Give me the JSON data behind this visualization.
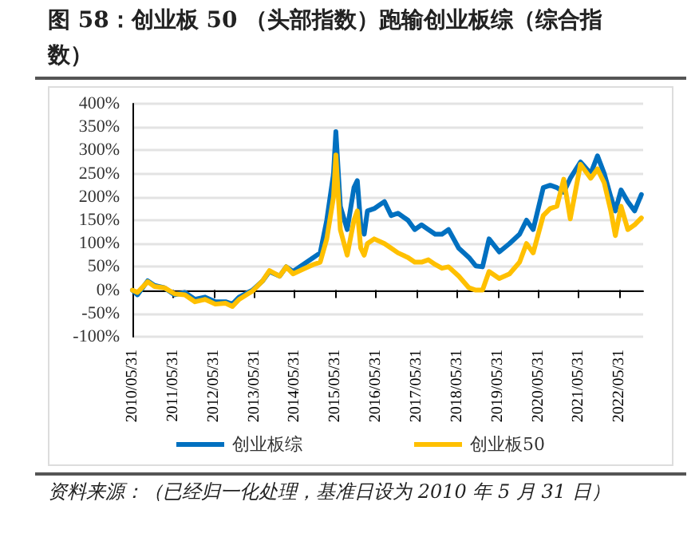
{
  "chart_data": {
    "type": "line",
    "title": "图 58：创业板 50 （头部指数）跑输创业板综（综合指数）",
    "annotations": [
      "资料来源：（已经归一化处理，基准日设为 2010 年 5 月 31 日）"
    ],
    "x": [
      "2010-05-31",
      "2010-07-15",
      "2010-10-15",
      "2010-12-15",
      "2011-03-15",
      "2011-06-15",
      "2011-09-15",
      "2011-12-15",
      "2012-03-15",
      "2012-06-15",
      "2012-09-15",
      "2012-11-15",
      "2013-01-15",
      "2013-05-15",
      "2013-08-15",
      "2013-10-15",
      "2014-01-15",
      "2014-03-15",
      "2014-05-15",
      "2014-08-15",
      "2014-11-15",
      "2015-01-15",
      "2015-03-15",
      "2015-05-15",
      "2015-06-05",
      "2015-07-15",
      "2015-09-15",
      "2015-11-15",
      "2015-12-15",
      "2016-01-15",
      "2016-02-15",
      "2016-03-15",
      "2016-05-15",
      "2016-08-15",
      "2016-10-15",
      "2016-12-15",
      "2017-03-15",
      "2017-05-15",
      "2017-07-15",
      "2017-09-15",
      "2017-11-15",
      "2018-01-15",
      "2018-03-15",
      "2018-06-15",
      "2018-09-15",
      "2018-11-15",
      "2019-01-15",
      "2019-03-15",
      "2019-06-15",
      "2019-09-15",
      "2019-12-15",
      "2020-02-15",
      "2020-04-15",
      "2020-07-15",
      "2020-09-15",
      "2020-11-15",
      "2021-01-15",
      "2021-03-15",
      "2021-06-15",
      "2021-09-15",
      "2021-11-15",
      "2022-01-15",
      "2022-03-15",
      "2022-04-25",
      "2022-06-15",
      "2022-08-15",
      "2022-10-15",
      "2022-12-15"
    ],
    "series": [
      {
        "name": "创业板综",
        "color": "#0070c0",
        "values": [
          0,
          -10,
          20,
          10,
          5,
          -10,
          -5,
          -20,
          -15,
          -25,
          -25,
          -30,
          -15,
          0,
          20,
          40,
          30,
          50,
          40,
          55,
          70,
          80,
          150,
          250,
          340,
          180,
          130,
          220,
          235,
          140,
          120,
          170,
          175,
          190,
          160,
          165,
          150,
          130,
          140,
          130,
          120,
          120,
          130,
          90,
          70,
          52,
          50,
          110,
          82,
          100,
          120,
          150,
          130,
          220,
          225,
          220,
          210,
          240,
          275,
          250,
          288,
          250,
          200,
          170,
          215,
          190,
          170,
          205
        ]
      },
      {
        "name": "创业板50",
        "color": "#ffc000",
        "values": [
          0,
          -5,
          18,
          8,
          5,
          -8,
          -10,
          -25,
          -20,
          -30,
          -28,
          -35,
          -20,
          -2,
          20,
          42,
          30,
          50,
          35,
          45,
          55,
          60,
          110,
          200,
          290,
          130,
          75,
          150,
          170,
          90,
          75,
          100,
          110,
          100,
          90,
          80,
          70,
          60,
          60,
          65,
          55,
          47,
          50,
          30,
          5,
          0,
          0,
          40,
          25,
          35,
          60,
          100,
          80,
          160,
          175,
          180,
          238,
          153,
          270,
          240,
          260,
          230,
          170,
          117,
          180,
          130,
          140,
          155
        ]
      }
    ],
    "xlim": [
      "2010-05-31",
      "2022-12-31"
    ],
    "xticks": [
      {
        "value": "2010-05-31",
        "label": "2010/05/31"
      },
      {
        "value": "2011-05-31",
        "label": "2011/05/31"
      },
      {
        "value": "2012-05-31",
        "label": "2012/05/31"
      },
      {
        "value": "2013-05-31",
        "label": "2013/05/31"
      },
      {
        "value": "2014-05-31",
        "label": "2014/05/31"
      },
      {
        "value": "2015-05-31",
        "label": "2015/05/31"
      },
      {
        "value": "2016-05-31",
        "label": "2016/05/31"
      },
      {
        "value": "2017-05-31",
        "label": "2017/05/31"
      },
      {
        "value": "2018-05-31",
        "label": "2018/05/31"
      },
      {
        "value": "2019-05-31",
        "label": "2019/05/31"
      },
      {
        "value": "2020-05-31",
        "label": "2020/05/31"
      },
      {
        "value": "2021-05-31",
        "label": "2021/05/31"
      },
      {
        "value": "2022-05-31",
        "label": "2022/05/31"
      }
    ],
    "ylim": [
      -100,
      400
    ],
    "yticks": [
      {
        "value": -100,
        "label": "-100%"
      },
      {
        "value": -50,
        "label": "-50%"
      },
      {
        "value": 0,
        "label": "0%"
      },
      {
        "value": 50,
        "label": "50%"
      },
      {
        "value": 100,
        "label": "100%"
      },
      {
        "value": 150,
        "label": "150%"
      },
      {
        "value": 200,
        "label": "200%"
      },
      {
        "value": 250,
        "label": "250%"
      },
      {
        "value": 300,
        "label": "300%"
      },
      {
        "value": 350,
        "label": "350%"
      },
      {
        "value": 400,
        "label": "400%"
      }
    ],
    "grid": "y",
    "legend": "bottom",
    "marker": "none",
    "line_style": "solid"
  }
}
